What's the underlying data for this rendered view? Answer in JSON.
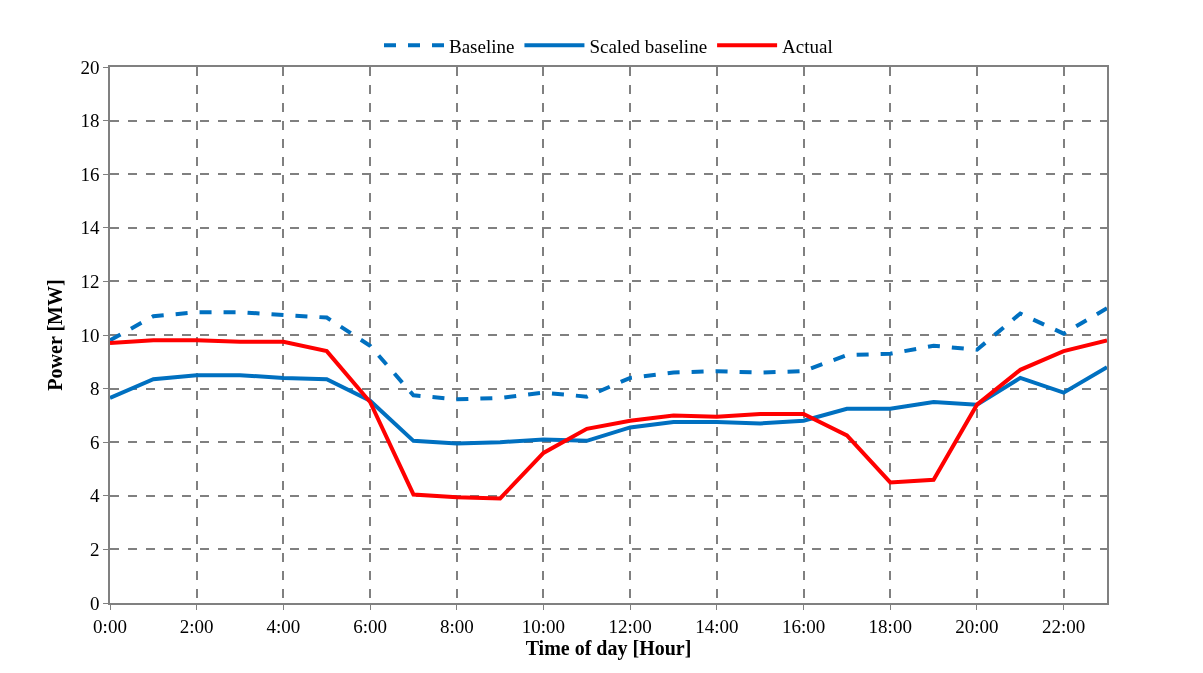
{
  "chart_data": {
    "type": "line",
    "xlabel": "Time of day [Hour]",
    "ylabel": "Power [MW]",
    "x": [
      0,
      1,
      2,
      3,
      4,
      5,
      6,
      7,
      8,
      9,
      10,
      11,
      12,
      13,
      14,
      15,
      16,
      17,
      18,
      19,
      20,
      21,
      22,
      23
    ],
    "series": [
      {
        "name": "Baseline",
        "color": "#0070c0",
        "line_style": "dashed",
        "values": [
          9.8,
          10.7,
          10.85,
          10.85,
          10.75,
          10.65,
          9.6,
          7.75,
          7.6,
          7.65,
          7.85,
          7.7,
          8.4,
          8.6,
          8.65,
          8.6,
          8.65,
          9.25,
          9.3,
          9.6,
          9.45,
          10.8,
          10.05,
          11.0
        ]
      },
      {
        "name": "Scaled baseline",
        "color": "#0070c0",
        "line_style": "solid",
        "values": [
          7.65,
          8.35,
          8.5,
          8.5,
          8.4,
          8.35,
          7.55,
          6.05,
          5.95,
          6.0,
          6.1,
          6.05,
          6.55,
          6.75,
          6.75,
          6.7,
          6.8,
          7.25,
          7.25,
          7.5,
          7.4,
          8.4,
          7.85,
          8.8
        ]
      },
      {
        "name": "Actual",
        "color": "#ff0000",
        "line_style": "solid",
        "values": [
          9.7,
          9.8,
          9.8,
          9.75,
          9.75,
          9.4,
          7.5,
          4.05,
          3.95,
          3.9,
          5.6,
          6.5,
          6.8,
          7.0,
          6.95,
          7.05,
          7.05,
          6.25,
          4.5,
          4.6,
          7.4,
          8.7,
          9.4,
          9.8
        ]
      }
    ],
    "xlim": [
      0,
      23
    ],
    "xticks": [
      {
        "value": 0,
        "label": "0:00"
      },
      {
        "value": 2,
        "label": "2:00"
      },
      {
        "value": 4,
        "label": "4:00"
      },
      {
        "value": 6,
        "label": "6:00"
      },
      {
        "value": 8,
        "label": "8:00"
      },
      {
        "value": 10,
        "label": "10:00"
      },
      {
        "value": 12,
        "label": "12:00"
      },
      {
        "value": 14,
        "label": "14:00"
      },
      {
        "value": 16,
        "label": "16:00"
      },
      {
        "value": 18,
        "label": "18:00"
      },
      {
        "value": 20,
        "label": "20:00"
      },
      {
        "value": 22,
        "label": "22:00"
      }
    ],
    "ylim": [
      0,
      20
    ],
    "yticks": [
      0,
      2,
      4,
      6,
      8,
      10,
      12,
      14,
      16,
      18,
      20
    ],
    "grid": true,
    "legend": "top",
    "marker": "none"
  }
}
